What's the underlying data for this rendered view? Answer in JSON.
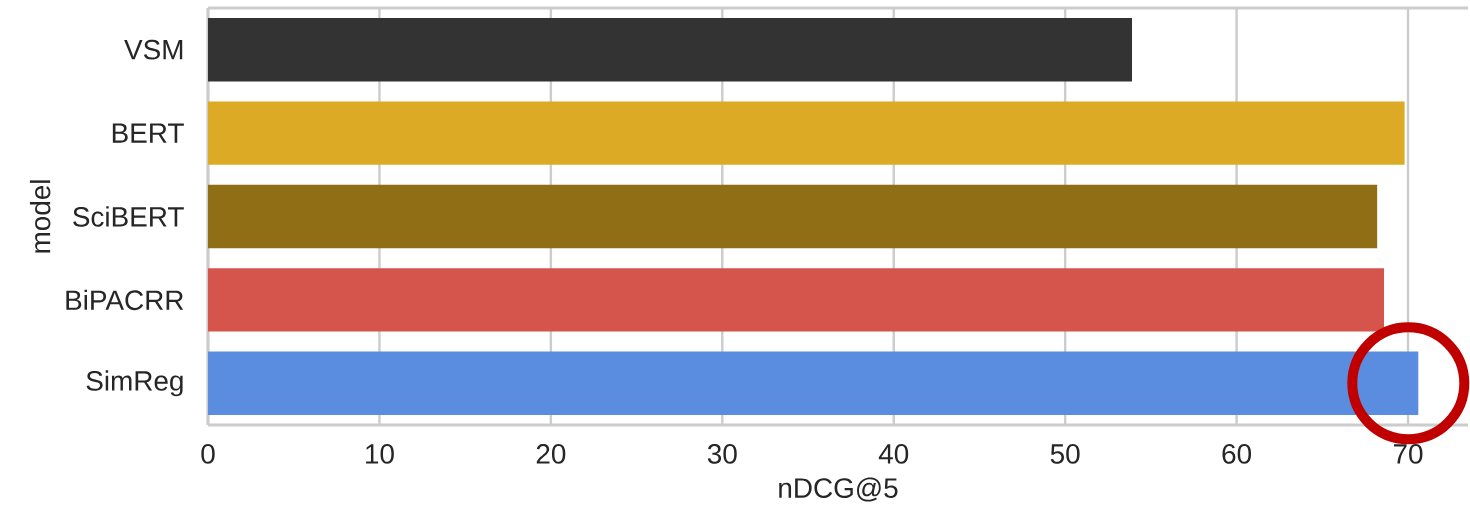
{
  "chart_data": {
    "type": "bar",
    "orientation": "horizontal",
    "xlabel": "nDCG@5",
    "ylabel": "model",
    "categories": [
      "VSM",
      "BERT",
      "SciBERT",
      "BiPACRR",
      "SimReg"
    ],
    "values": [
      53.9,
      69.8,
      68.2,
      68.6,
      70.6
    ],
    "colors": [
      "#333333",
      "#dcaa24",
      "#8f6e15",
      "#d5554c",
      "#5a8ddf"
    ],
    "xlim": [
      0,
      73.5
    ],
    "xticks": [
      0,
      10,
      20,
      30,
      40,
      50,
      60,
      70
    ],
    "grid": "x"
  }
}
